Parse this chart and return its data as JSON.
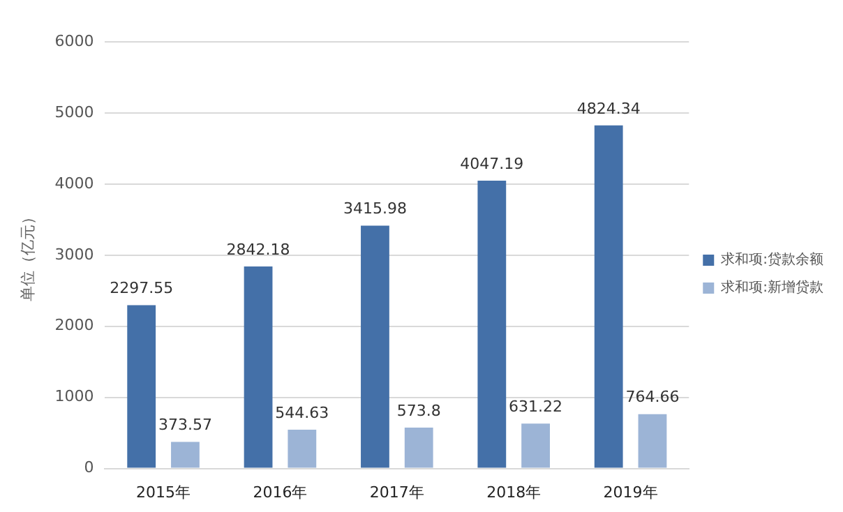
{
  "chart_data": {
    "type": "bar",
    "ylabel": "单位（亿元）",
    "categories": [
      "2015年",
      "2016年",
      "2017年",
      "2018年",
      "2019年"
    ],
    "series": [
      {
        "name": "求和项:贷款余额",
        "color": "#4470a8",
        "values": [
          2297.55,
          2842.18,
          3415.98,
          4047.19,
          4824.34
        ]
      },
      {
        "name": "求和项:新增贷款",
        "color": "#9cb4d6",
        "values": [
          373.57,
          544.63,
          573.8,
          631.22,
          764.66
        ]
      }
    ],
    "ylim": [
      0,
      6000
    ],
    "yticks": [
      0,
      1000,
      2000,
      3000,
      4000,
      5000,
      6000
    ],
    "grid": "y",
    "legend": "right",
    "data_labels": true
  }
}
